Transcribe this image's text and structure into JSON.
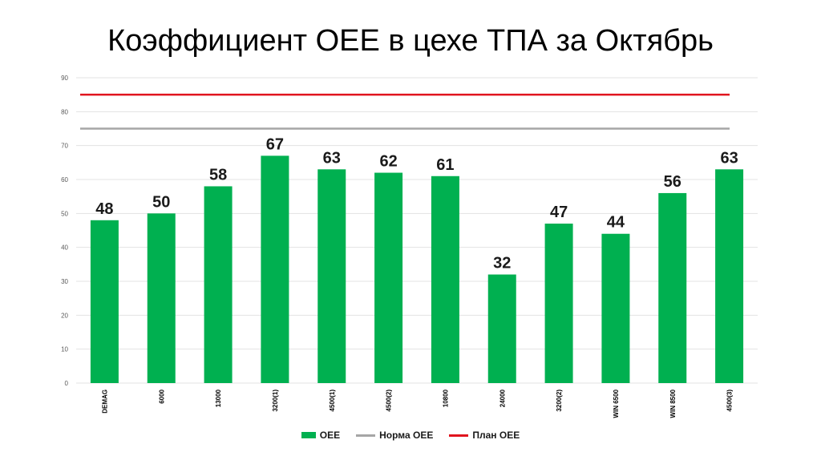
{
  "chart_data": {
    "type": "bar",
    "title": "Коэффициент ОЕЕ в цехе ТПА за Октябрь",
    "categories": [
      "DEMAG",
      "6000",
      "13000",
      "3200(1)",
      "4500(1)",
      "4500(2)",
      "10800",
      "24000",
      "3200(2)",
      "WIN 6500",
      "WIN 8500",
      "4500(3)"
    ],
    "series": [
      {
        "name": "OEE",
        "values": [
          48,
          50,
          58,
          67,
          63,
          62,
          61,
          32,
          47,
          44,
          56,
          63
        ],
        "color": "#00b050"
      }
    ],
    "data_labels": [
      "48",
      "50",
      "58",
      "67",
      "63",
      "62",
      "61",
      "32",
      "47",
      "44",
      "56",
      "63"
    ],
    "reference_lines": [
      {
        "name": "Норма OEE",
        "value": 75,
        "color": "#a6a6a6"
      },
      {
        "name": "План OEE",
        "value": 85,
        "color": "#e0141e"
      }
    ],
    "yticks": [
      "0",
      "10",
      "20",
      "30",
      "40",
      "50",
      "60",
      "70",
      "80",
      "90"
    ],
    "ylim": [
      0,
      90
    ],
    "grid": true,
    "legend_position": "bottom",
    "xlabel": "",
    "ylabel": ""
  }
}
